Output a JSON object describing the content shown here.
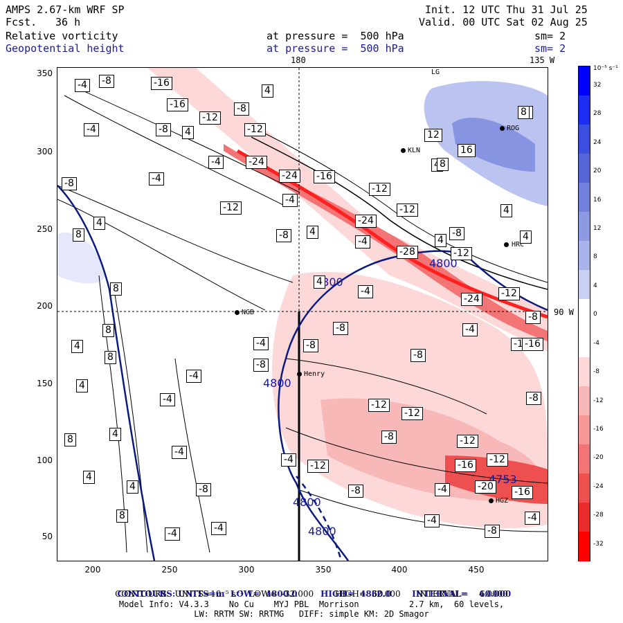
{
  "header": {
    "model": "AMPS 2.67-km WRF SP",
    "fcst_label": "Fcst.",
    "fcst_value": "36 h",
    "init": "Init. 12 UTC Thu 31 Jul 25",
    "valid": "Valid. 00 UTC Sat 02 Aug 25",
    "field1": "Relative vorticity",
    "field2": "Geopotential height",
    "pressure1": "at pressure =  500 hPa",
    "pressure2": "at pressure =  500 hPa",
    "sm1": "sm= 2",
    "sm2": "sm= 2",
    "lon_180": "180",
    "lon_135w": "135 W",
    "lat_90w": "90 W"
  },
  "axes": {
    "y_ticks": [
      "350",
      "300",
      "250",
      "200",
      "150",
      "100",
      "50"
    ],
    "x_ticks": [
      "200",
      "250",
      "300",
      "350",
      "400",
      "450"
    ]
  },
  "colorbar": {
    "unit": "10⁻⁵ s⁻¹",
    "labels": [
      "32",
      "28",
      "24",
      "20",
      "16",
      "12",
      "8",
      "4",
      "0",
      "-4",
      "-8",
      "-12",
      "-16",
      "-20",
      "-24",
      "-28",
      "-32"
    ],
    "colors": [
      "#0000ff",
      "#1c2cf0",
      "#3a4ee0",
      "#5666d8",
      "#7080dc",
      "#8c9ae4",
      "#aab4ec",
      "#c8d0f4",
      "#ffffff",
      "#ffffff",
      "#fcd8d8",
      "#f9b8b8",
      "#f69898",
      "#f27474",
      "#ee5050",
      "#ea2c2c",
      "#ff0000"
    ]
  },
  "stations": [
    {
      "name": "LG"
    },
    {
      "name": "ROG"
    },
    {
      "name": "KLN"
    },
    {
      "name": "HRC"
    },
    {
      "name": "NGB"
    },
    {
      "name": "Henry"
    },
    {
      "name": "HGZ"
    }
  ],
  "height_labels": [
    "4800",
    "4800",
    "4800",
    "4800",
    "4800",
    "4753"
  ],
  "vort_labels": [
    "-4",
    "-8",
    "-16",
    "4",
    "-16",
    "-12",
    "-8",
    "-4",
    "4",
    "8",
    "-12",
    "-24",
    "-8",
    "-4",
    "-4",
    "-16",
    "-8",
    "-12",
    "4",
    "-24",
    "-4",
    "-12",
    "-24",
    "-28",
    "-12",
    "-8",
    "-4",
    "4",
    "-8",
    "4",
    "8",
    "4",
    "-24",
    "-16",
    "-8",
    "-12",
    "4",
    "8",
    "-4",
    "-8",
    "-12",
    "-4",
    "-8",
    "-16",
    "-8",
    "-4",
    "-12",
    "-12",
    "-8",
    "-12",
    "-12",
    "-16",
    "-12",
    "-20",
    "-16",
    "-4",
    "-8",
    "-4",
    "-4",
    "-8",
    "-4",
    "-4",
    "4",
    "8",
    "4",
    "8",
    "4",
    "8",
    "4",
    "4",
    "8",
    "-4",
    "-4",
    "-8",
    "-4",
    "-4",
    "-8",
    "4",
    "8",
    "12",
    "16",
    "8",
    "4",
    "8",
    "-8"
  ],
  "footer": {
    "line1_a": "CONTOURS:",
    "line1_b": "UNITS=m  LOW=  4800.0        HIGH=  4860.0       INTERVAL=    60.000",
    "line2": "CONTOURS:  UNITS=10⁻⁵ s⁻¹  LOW=  -32.000        HIGH=  32.000      INTERVAL=    4.0000",
    "line3": "Model Info: V4.3.3    No Cu    MYJ PBL  Morrison          2.7 km,  60 levels,",
    "line4": "LW: RRTM SW: RRTMG   DIFF: simple KM: 2D Smagor"
  }
}
